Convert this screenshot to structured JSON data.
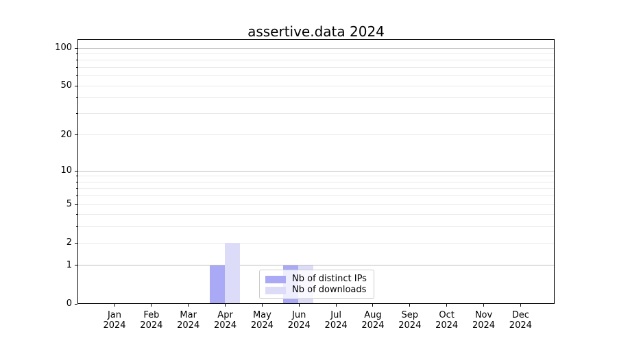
{
  "chart_data": {
    "type": "bar",
    "title": "assertive.data 2024",
    "categories": [
      "Jan 2024",
      "Feb 2024",
      "Mar 2024",
      "Apr 2024",
      "May 2024",
      "Jun 2024",
      "Jul 2024",
      "Aug 2024",
      "Sep 2024",
      "Oct 2024",
      "Nov 2024",
      "Dec 2024"
    ],
    "series": [
      {
        "name": "Nb of distinct IPs",
        "color": "#a9a9f6",
        "values": [
          0,
          0,
          0,
          1,
          0,
          1,
          0,
          0,
          0,
          0,
          0,
          0
        ]
      },
      {
        "name": "Nb of downloads",
        "color": "#dcdcf9",
        "values": [
          0,
          0,
          0,
          2,
          0,
          1,
          0,
          0,
          0,
          0,
          0,
          0
        ]
      }
    ],
    "y_axis": {
      "scale": "log10(1+v)",
      "tick_values": [
        0,
        1,
        2,
        5,
        10,
        20,
        50,
        100
      ],
      "tick_labels": [
        "0",
        "1",
        "2",
        "5",
        "10",
        "20",
        "50",
        "100"
      ],
      "minor_tick_values": [
        3,
        4,
        6,
        7,
        8,
        9,
        30,
        40,
        60,
        70,
        80,
        90
      ],
      "major_gridline_values": [
        1,
        10,
        100
      ],
      "ylim": [
        0,
        115
      ]
    },
    "xlabel": "",
    "ylabel": "",
    "grid": true,
    "legend": {
      "position": "lower center"
    },
    "colors": {
      "grid_major": "#bdbdbd",
      "grid_minor": "#e9e9e9",
      "frame": "#000000",
      "background": "#ffffff"
    }
  }
}
